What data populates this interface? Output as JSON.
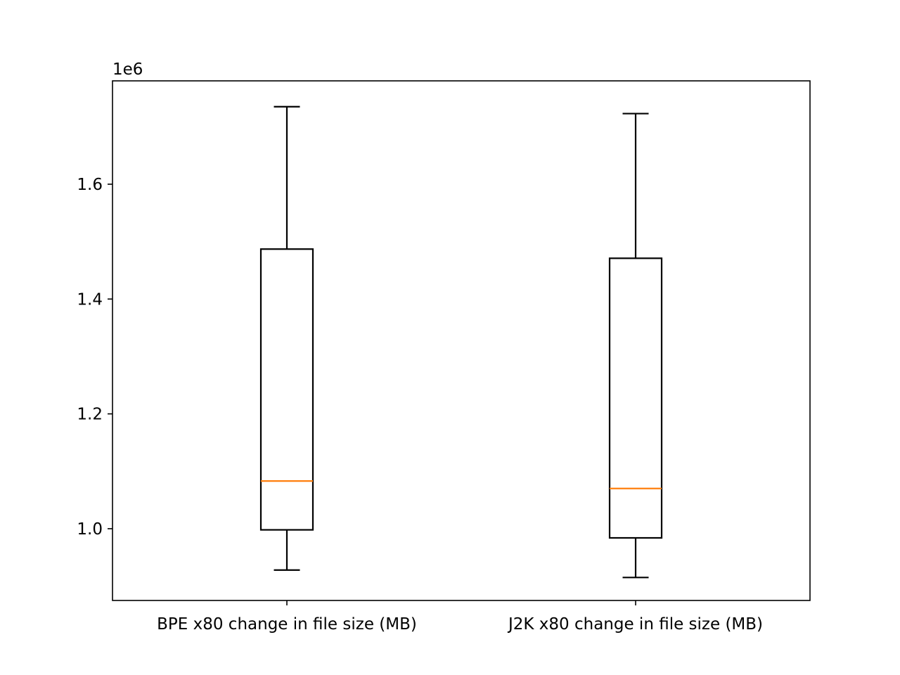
{
  "chart_data": {
    "type": "box",
    "title": "",
    "xlabel": "",
    "ylabel": "",
    "y_offset_label": "1e6",
    "ylim": [
      0.875,
      1.78
    ],
    "yticks": [
      1.0,
      1.2,
      1.4,
      1.6
    ],
    "ytick_labels": [
      "1.0",
      "1.2",
      "1.4",
      "1.6"
    ],
    "categories": [
      "BPE x80 change in file size (MB)",
      "J2K x80 change in file size (MB)"
    ],
    "boxes": [
      {
        "whisker_low": 0.928,
        "q1": 0.998,
        "median": 1.083,
        "q3": 1.487,
        "whisker_high": 1.735
      },
      {
        "whisker_low": 0.915,
        "q1": 0.984,
        "median": 1.07,
        "q3": 1.471,
        "whisker_high": 1.723
      }
    ],
    "grid": false,
    "colors": {
      "box": "#000000",
      "median": "#ff7f0e",
      "axes": "#000000",
      "background": "#ffffff"
    }
  }
}
